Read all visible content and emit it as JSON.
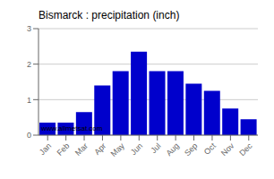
{
  "chart_data": {
    "type": "bar",
    "title": "Bismarck : precipitation (inch)",
    "categories": [
      "Jan",
      "Feb",
      "Mar",
      "Apr",
      "May",
      "Jun",
      "Jul",
      "Aug",
      "Sep",
      "Oct",
      "Nov",
      "Dec"
    ],
    "values": [
      0.35,
      0.35,
      0.65,
      1.4,
      1.8,
      2.35,
      1.8,
      1.8,
      1.45,
      1.25,
      0.75,
      0.45
    ],
    "color": "#0000CC",
    "ylim": [
      0,
      3
    ],
    "yticks": [
      0,
      1,
      2,
      3
    ],
    "grid": true,
    "annotations": [
      "www.allmetsat.com"
    ]
  }
}
